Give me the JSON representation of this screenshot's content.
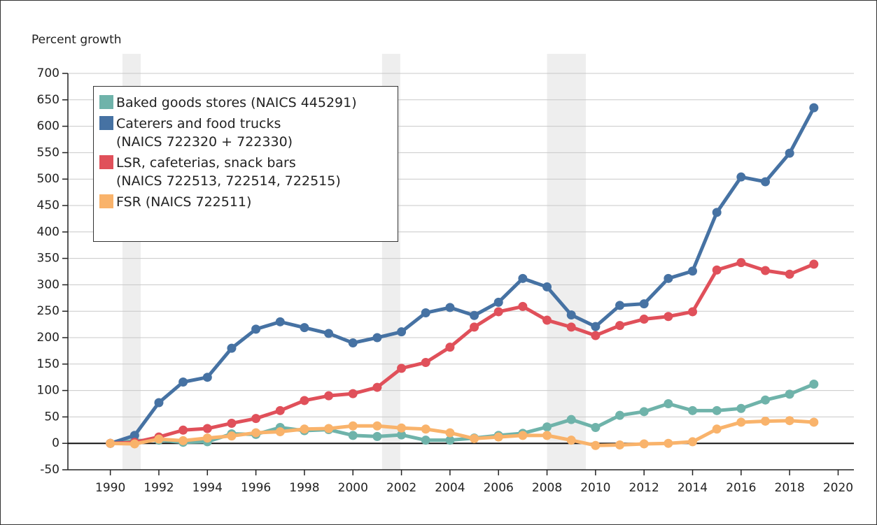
{
  "chart_data": {
    "type": "line",
    "y_axis_label": "Percent growth",
    "x": [
      1990,
      1991,
      1992,
      1993,
      1994,
      1995,
      1996,
      1997,
      1998,
      1999,
      2000,
      2001,
      2002,
      2003,
      2004,
      2005,
      2006,
      2007,
      2008,
      2009,
      2010,
      2011,
      2012,
      2013,
      2014,
      2015,
      2016,
      2017,
      2018,
      2019
    ],
    "series": [
      {
        "name": "Baked goods stores (NAICS 445291)",
        "color": "#6fb3aa",
        "values": [
          0,
          5,
          6,
          2,
          3,
          18,
          17,
          30,
          24,
          26,
          15,
          13,
          16,
          6,
          6,
          10,
          15,
          19,
          31,
          45,
          30,
          53,
          60,
          75,
          62,
          62,
          66,
          82,
          93,
          112
        ]
      },
      {
        "name": "Caterers and food trucks\n(NAICS 722320 + 722330)",
        "color": "#4672a3",
        "values": [
          0,
          15,
          77,
          116,
          125,
          180,
          216,
          230,
          219,
          208,
          190,
          200,
          211,
          247,
          257,
          242,
          267,
          312,
          296,
          243,
          221,
          261,
          264,
          312,
          326,
          437,
          504,
          495,
          549,
          635
        ]
      },
      {
        "name": "LSR, cafeterias, snack bars\n(NAICS 722513, 722514, 722515)",
        "color": "#e0505a",
        "values": [
          0,
          2,
          12,
          25,
          28,
          38,
          47,
          62,
          81,
          90,
          94,
          106,
          142,
          153,
          182,
          220,
          249,
          259,
          233,
          220,
          204,
          223,
          235,
          240,
          249,
          328,
          342,
          327,
          320,
          339
        ]
      },
      {
        "name": "FSR (NAICS 722511)",
        "color": "#f9b36b",
        "values": [
          0,
          -1,
          8,
          5,
          10,
          14,
          20,
          22,
          27,
          28,
          33,
          33,
          29,
          27,
          20,
          9,
          12,
          15,
          15,
          6,
          -4,
          -3,
          -1,
          0,
          3,
          27,
          40,
          42,
          43,
          40
        ]
      }
    ],
    "shaded_periods": [
      [
        1990.5,
        1991.25
      ],
      [
        2001.2,
        2001.95
      ],
      [
        2008,
        2009.6
      ]
    ],
    "shade_color": "#eeeeee",
    "xlim": [
      1988.25,
      2020.65
    ],
    "xticks": [
      1990,
      1992,
      1994,
      1996,
      1998,
      2000,
      2002,
      2004,
      2006,
      2008,
      2010,
      2012,
      2014,
      2016,
      2018,
      2020
    ],
    "ylim": [
      -50,
      700
    ],
    "yticks": [
      -50,
      0,
      50,
      100,
      150,
      200,
      250,
      300,
      350,
      400,
      450,
      500,
      550,
      600,
      650,
      700
    ],
    "grid": true
  }
}
